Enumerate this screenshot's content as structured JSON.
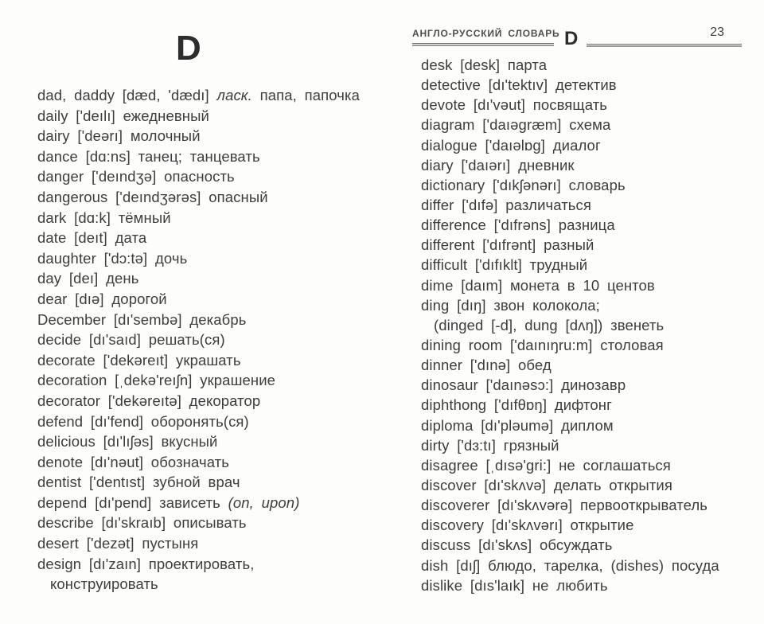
{
  "page": {
    "section_letter": "D"
  },
  "header": {
    "title": "АНГЛО-РУССКИЙ СЛОВАРЬ",
    "section_letter": "D",
    "page_number": "23"
  },
  "columns": [
    {
      "name": "left",
      "lines": [
        {
          "seg": [
            "dad, daddy [dæd, 'dædı] ",
            {
              "t": "ласк.",
              "i": true
            },
            " папа, папочка"
          ]
        },
        {
          "seg": [
            "daily ['deılı] ежедневный"
          ]
        },
        {
          "seg": [
            "dairy ['deərı] молочный"
          ]
        },
        {
          "seg": [
            "dance [dɑ:ns] танец; танцевать"
          ]
        },
        {
          "seg": [
            "danger ['deındʒə] опасность"
          ]
        },
        {
          "seg": [
            "dangerous ['deındʒərəs] опасный"
          ]
        },
        {
          "seg": [
            "dark [dɑ:k] тёмный"
          ]
        },
        {
          "seg": [
            "date [deıt] дата"
          ]
        },
        {
          "seg": [
            "daughter ['dɔ:tə] дочь"
          ]
        },
        {
          "seg": [
            "day [deı] день"
          ]
        },
        {
          "seg": [
            "dear [dıə] дорогой"
          ]
        },
        {
          "seg": [
            "December [dı'sembə] декабрь"
          ]
        },
        {
          "seg": [
            "decide [dı'saıd] решать(ся)"
          ]
        },
        {
          "seg": [
            "decorate ['dekəreıt] украшать"
          ]
        },
        {
          "seg": [
            "decoration [ˌdekə'reıʃn] украшение"
          ]
        },
        {
          "seg": [
            "decorator ['dekəreıtə] декоратор"
          ]
        },
        {
          "seg": [
            "defend [dı'fend] оборонять(ся)"
          ]
        },
        {
          "seg": [
            "delicious [dı'lıʃəs] вкусный"
          ]
        },
        {
          "seg": [
            "denote [dı'nəut] обозначать"
          ]
        },
        {
          "seg": [
            "dentist ['dentıst] зубной врач"
          ]
        },
        {
          "seg": [
            "depend [dı'pend] зависеть ",
            {
              "t": "(on, upon)",
              "i": true
            }
          ]
        },
        {
          "seg": [
            "describe [dı'skraıb] описывать"
          ]
        },
        {
          "seg": [
            "desert ['dezət] пустыня"
          ]
        },
        {
          "seg": [
            "design [dı'zaın] проектировать,"
          ]
        },
        {
          "indent": true,
          "seg": [
            "конструировать"
          ]
        }
      ]
    },
    {
      "name": "right",
      "lines": [
        {
          "seg": [
            "desk [desk] парта"
          ]
        },
        {
          "seg": [
            "detective [dı'tektıv] детектив"
          ]
        },
        {
          "seg": [
            "devote [dı'vəut] посвящать"
          ]
        },
        {
          "seg": [
            "diagram ['daıəgræm] схема"
          ]
        },
        {
          "seg": [
            "dialogue ['daıəlɒg] диалог"
          ]
        },
        {
          "seg": [
            "diary ['daıərı] дневник"
          ]
        },
        {
          "seg": [
            "dictionary ['dıkʃənərı] словарь"
          ]
        },
        {
          "seg": [
            "differ ['dıfə] различаться"
          ]
        },
        {
          "seg": [
            "difference ['dıfrəns] разница"
          ]
        },
        {
          "seg": [
            "different ['dıfrənt] разный"
          ]
        },
        {
          "seg": [
            "difficult ['dıfıklt] трудный"
          ]
        },
        {
          "seg": [
            "dime [daım] монета в 10 центов"
          ]
        },
        {
          "seg": [
            "ding [dıŋ] звон колокола;"
          ]
        },
        {
          "indent": true,
          "seg": [
            "(dinged [-d], dung [dʌŋ]) звенеть"
          ]
        },
        {
          "seg": [
            "dining room ['daınıŋru:m] столовая"
          ]
        },
        {
          "seg": [
            "dinner ['dınə] обед"
          ]
        },
        {
          "seg": [
            "dinosaur ['daınəsɔ:] динозавр"
          ]
        },
        {
          "seg": [
            "diphthong ['dıfθɒŋ] дифтонг"
          ]
        },
        {
          "seg": [
            "diploma [dı'pləumə] диплом"
          ]
        },
        {
          "seg": [
            "dirty ['dɜ:tı] грязный"
          ]
        },
        {
          "seg": [
            "disagree [ˌdısə'gri:] не соглашаться"
          ]
        },
        {
          "seg": [
            "discover [dı'skʌvə] делать открытия"
          ]
        },
        {
          "seg": [
            "discoverer [dı'skʌvərə] первооткрыватель"
          ]
        },
        {
          "seg": [
            "discovery [dı'skʌvərı] открытие"
          ]
        },
        {
          "seg": [
            "discuss [dı'skʌs] обсуждать"
          ]
        },
        {
          "seg": [
            "dish [dıʃ] блюдо, тарелка, (dishes) посуда"
          ]
        },
        {
          "seg": [
            "dislike [dıs'laık] не любить"
          ]
        }
      ]
    }
  ]
}
